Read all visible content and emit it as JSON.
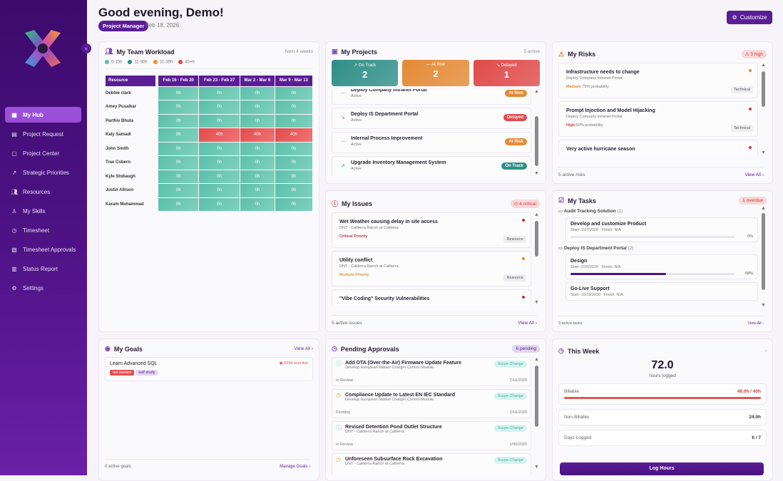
{
  "sidebar": {
    "collapse_icon": "chevron-left",
    "items": [
      {
        "label": "My Hub",
        "icon": "grid",
        "active": true
      },
      {
        "label": "Project Request",
        "icon": "file"
      },
      {
        "label": "Project Center",
        "icon": "folder"
      },
      {
        "label": "Strategic Priorities",
        "icon": "trending-up"
      },
      {
        "label": "Resources",
        "icon": "users"
      },
      {
        "label": "My Skills",
        "icon": "award"
      },
      {
        "label": "Timesheet",
        "icon": "clock"
      },
      {
        "label": "Timesheet Approvals",
        "icon": "clipboard-check"
      },
      {
        "label": "Status Report",
        "icon": "bar-chart"
      },
      {
        "label": "Settings",
        "icon": "gear"
      }
    ]
  },
  "header": {
    "greeting": "Good evening, Demo!",
    "role": "Project Manager",
    "date": "Feb 18, 2026",
    "customize_label": "Customize"
  },
  "workload": {
    "title": "My Team Workload",
    "range": "Next 4 weeks",
    "legend": [
      {
        "label": "0-10h",
        "color": "#5bbfa9"
      },
      {
        "label": "11-30h",
        "color": "#2a8a86"
      },
      {
        "label": "31-39h",
        "color": "#e8913a"
      },
      {
        "label": "40+h",
        "color": "#e04a4a"
      }
    ],
    "columns": [
      "Resource",
      "Feb 16 - Feb 20",
      "Feb 23 - Feb 27",
      "Mar 2 - Mar 6",
      "Mar 9 - Mar 13"
    ],
    "rows": [
      {
        "name": "Debbie clark",
        "hours": [
          "0h",
          "0h",
          "0h",
          "0h"
        ]
      },
      {
        "name": "Amey Pusalkar",
        "hours": [
          "0h",
          "0h",
          "0h",
          "0h"
        ]
      },
      {
        "name": "Parthiv Bhuta",
        "hours": [
          "0h",
          "0h",
          "0h",
          "0h"
        ]
      },
      {
        "name": "Kaly Samadi",
        "hours": [
          "8h",
          "40h",
          "40h",
          "40h"
        ]
      },
      {
        "name": "John Smith",
        "hours": [
          "0h",
          "0h",
          "0h",
          "0h"
        ]
      },
      {
        "name": "Trae Cobern",
        "hours": [
          "0h",
          "0h",
          "0h",
          "0h"
        ]
      },
      {
        "name": "Kyle Stobaugh",
        "hours": [
          "0h",
          "0h",
          "0h",
          "0h"
        ]
      },
      {
        "name": "Justin Allison",
        "hours": [
          "0h",
          "0h",
          "0h",
          "0h"
        ]
      },
      {
        "name": "Karam Mohammad",
        "hours": [
          "0h",
          "0h",
          "0h",
          "0h"
        ]
      }
    ]
  },
  "projects": {
    "title": "My Projects",
    "count": "5 active",
    "stats": [
      {
        "label": "On Track",
        "value": "2",
        "color": "#2f8f88"
      },
      {
        "label": "At Risk",
        "value": "2",
        "color": "#e58a35"
      },
      {
        "label": "Delayed",
        "value": "1",
        "color": "#e04a4a"
      }
    ],
    "items": [
      {
        "name": "Deploy Company Intranet Portal",
        "state": "Active",
        "status": "At Risk"
      },
      {
        "name": "Deploy IS Department Portal",
        "state": "Active",
        "status": "Delayed"
      },
      {
        "name": "Internal Process Improvement",
        "state": "Active",
        "status": "At Risk"
      },
      {
        "name": "Upgrade Inventory Management System",
        "state": "Active",
        "status": "On Track"
      }
    ]
  },
  "risks": {
    "title": "My Risks",
    "badge": "3 high",
    "footer": "5 active risks",
    "view_all": "View All",
    "items": [
      {
        "title": "Infrastructure needs to change",
        "project": "Deploy Company Intranet Portal",
        "level": "Medium",
        "probability": "75% probability",
        "category": "Technical"
      },
      {
        "title": "Prompt Injection and Model Hijacking",
        "project": "Deploy Company Intranet Portal",
        "level": "High",
        "probability": "50% probability",
        "category": "Technical"
      },
      {
        "title": "Very active hurricane season"
      }
    ]
  },
  "issues": {
    "title": "My Issues",
    "badge": "4 critical",
    "footer": "5 active issues",
    "view_all": "View All",
    "items": [
      {
        "title": "Wet Weather causing delay in site access",
        "project": "DNT - Caliterra Ranch at Caliterra",
        "priority": "Critical Priority",
        "category": "Resource"
      },
      {
        "title": "Utility conflict",
        "project": "DNT - Caliterra Ranch at Caliterra",
        "priority": "Medium Priority",
        "category": "Resource"
      },
      {
        "title": "\"Vibe Coding\" Security Vulnerabilities"
      }
    ]
  },
  "tasks": {
    "title": "My Tasks",
    "badge": "1 overdue",
    "footer": "3 active tasks",
    "view_all": "View All",
    "groups": [
      {
        "name": "Audit Tracking Solution",
        "count": "(1)",
        "tasks": [
          {
            "name": "Develop and customize Product",
            "start": "Start: 1/27/2026",
            "finish": "Finish: N/A",
            "progress": 0,
            "progress_label": "0%"
          }
        ]
      },
      {
        "name": "Deploy IS Department Portal",
        "count": "(2)",
        "tasks": [
          {
            "name": "Design",
            "start": "Start: 2/20/2026",
            "finish": "Finish: N/A",
            "progress": 58,
            "progress_label": "58%"
          },
          {
            "name": "Go-Live Support",
            "start": "Start: 10/19/2026",
            "finish": "Finish: N/A"
          }
        ]
      }
    ]
  },
  "goals": {
    "title": "My Goals",
    "view_all": "View All",
    "footer": "0 active goals",
    "manage": "Manage Goals",
    "items": [
      {
        "name": "Learn Advanced SQL",
        "status": "not started",
        "type": "self study",
        "overdue": "659d overdue"
      }
    ]
  },
  "approvals": {
    "title": "Pending Approvals",
    "badge": "6 pending",
    "items": [
      {
        "title": "Add OTA (Over-the-Air) Firmware Update Feature",
        "project": "Develop European Market Charger Control Module",
        "type": "Scope Change",
        "state": "In Review",
        "date": "2/16/2026"
      },
      {
        "title": "Compliance Update to Latest EN IEC Standard",
        "project": "Develop European Market Charger Control Module",
        "type": "Scope Change",
        "state": "Pending",
        "date": "2/16/2026"
      },
      {
        "title": "Revised Detention Pond Outlet Structure",
        "project": "DNT - Caliterra Ranch at Caliterra",
        "type": "Scope Change",
        "state": "In Review",
        "date": "1/30/2026"
      },
      {
        "title": "Unforeseen Subsurface Rock Excavation",
        "project": "DNT - Caliterra Ranch at Caliterra",
        "type": "Scope Change"
      }
    ]
  },
  "week": {
    "title": "This Week",
    "hours": "72.0",
    "hours_label": "hours logged",
    "billable_label": "Billable",
    "billable_value": "48.0h / 40h",
    "billable_fraction": 1.0,
    "nonbillable_label": "Non-Billable",
    "nonbillable_value": "24.0h",
    "days_label": "Days Logged",
    "days_value": "6 / 7",
    "log_button": "Log Hours"
  }
}
